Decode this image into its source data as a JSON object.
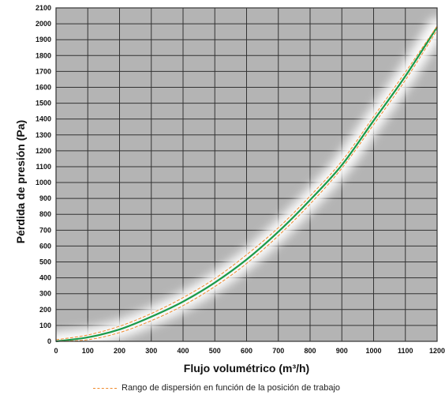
{
  "chart_data": {
    "type": "line",
    "xlabel": "Flujo volumétrico (m³/h)",
    "ylabel": "Pérdida de presión (Pa)",
    "xlim": [
      0,
      1200
    ],
    "ylim": [
      0,
      2100
    ],
    "x_ticks": [
      "0",
      "100",
      "200",
      "300",
      "400",
      "500",
      "600",
      "700",
      "800",
      "900",
      "1000",
      "1100",
      "1200"
    ],
    "y_ticks": [
      "0",
      "100",
      "200",
      "300",
      "400",
      "500",
      "600",
      "700",
      "800",
      "900",
      "1000",
      "1100",
      "1200",
      "1300",
      "1400",
      "1500",
      "1600",
      "1700",
      "1800",
      "1900",
      "2000",
      "2100"
    ],
    "grid": true,
    "legend": "bottom",
    "series": [
      {
        "role": "main",
        "color": "#1a9a4a",
        "x": [
          0,
          100,
          200,
          300,
          400,
          500,
          600,
          700,
          800,
          900,
          1000,
          1100,
          1200
        ],
        "y": [
          0,
          25,
          75,
          155,
          250,
          370,
          515,
          690,
          890,
          1110,
          1390,
          1670,
          1980
        ]
      },
      {
        "role": "dispersion-upper",
        "name": "Rango de dispersión en función de la posición de trabajo",
        "color": "#f08a2c",
        "x": [
          0,
          100,
          200,
          300,
          400,
          500,
          600,
          700,
          800,
          900,
          1000,
          1100,
          1200
        ],
        "y": [
          10,
          40,
          95,
          175,
          275,
          395,
          545,
          715,
          915,
          1135,
          1415,
          1695,
          1985
        ]
      },
      {
        "role": "dispersion-lower",
        "color": "#f08a2c",
        "x": [
          0,
          100,
          200,
          300,
          400,
          500,
          600,
          700,
          800,
          900,
          1000,
          1100,
          1200
        ],
        "y": [
          0,
          10,
          55,
          130,
          225,
          345,
          490,
          665,
          865,
          1090,
          1365,
          1645,
          1960
        ]
      }
    ]
  },
  "legend": {
    "label": "Rango de dispersión en función de la posición de trabajo",
    "color": "#f08a2c"
  },
  "colors": {
    "plot_background": "#b4b4b4",
    "grid": "#333333",
    "glow": "#ffffff"
  }
}
